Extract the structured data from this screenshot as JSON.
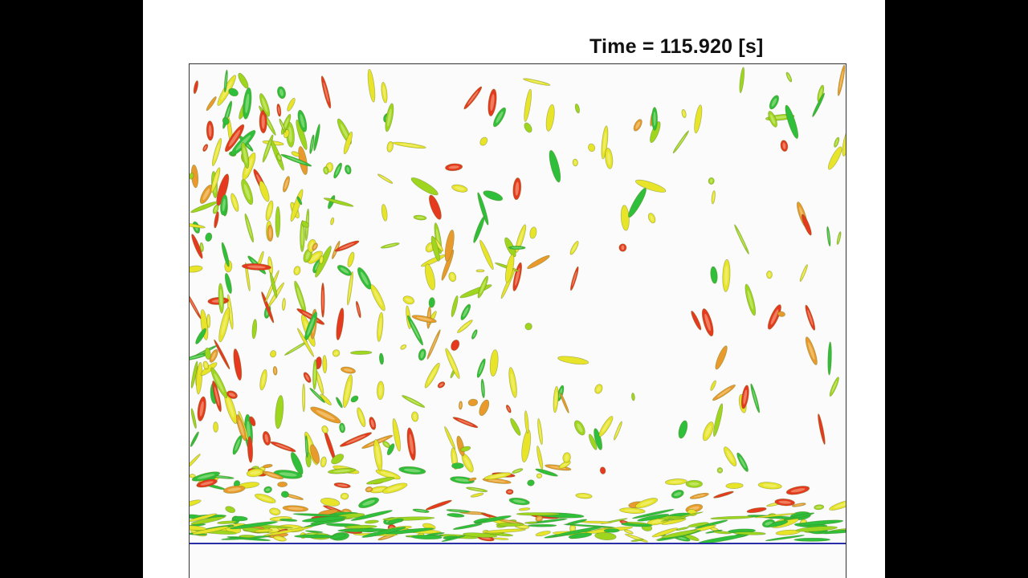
{
  "header": {
    "time_label": "Time = 115.920 [s]"
  },
  "visualization": {
    "subject": "vortex isosurfaces",
    "colors": {
      "green": "#2fbf3a",
      "yellow_green": "#9ed61f",
      "yellow": "#e7e42a",
      "orange": "#e89a2c",
      "red": "#e53a1f",
      "wall_line": "#2a2fa8"
    }
  }
}
